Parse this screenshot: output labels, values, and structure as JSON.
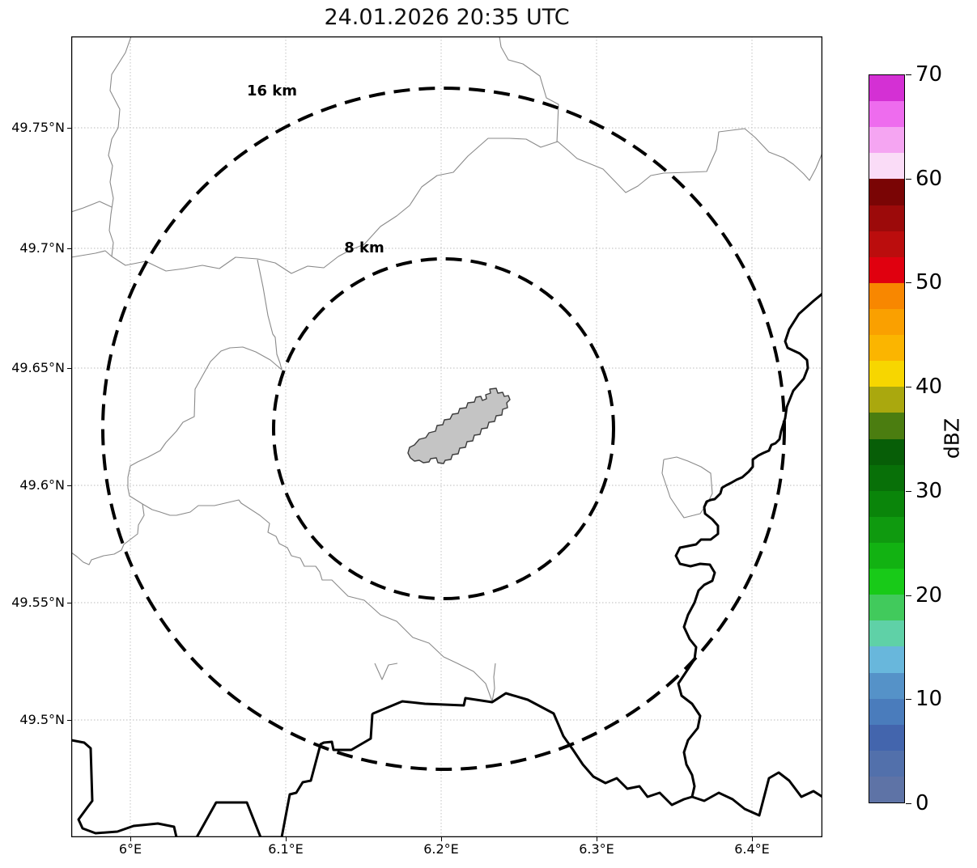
{
  "title": "24.01.2026 20:35 UTC",
  "map": {
    "x_tick_labels": [
      "6°E",
      "6.1°E",
      "6.2°E",
      "6.3°E",
      "6.4°E"
    ],
    "y_tick_labels": [
      "49.75°N",
      "49.7°N",
      "49.65°N",
      "49.6°N",
      "49.55°N",
      "49.5°N"
    ],
    "range_ring_outer_label": "16 km",
    "range_ring_inner_label": "8 km",
    "range_ring_radii_km": [
      16,
      8
    ],
    "feature_colors": {
      "country_border": "#000000",
      "region_boundary": "#8a8a8a",
      "airport_fill": "#c4c4c4",
      "airport_outline": "#3c3c3c",
      "grid": "#bbbbbb"
    }
  },
  "colorbar": {
    "label": "dBZ",
    "tick_labels": [
      "0",
      "10",
      "20",
      "30",
      "40",
      "50",
      "60",
      "70"
    ],
    "min": 0,
    "max": 70,
    "segment_step_dbz": 2.5,
    "segment_colors_bottom_to_top": [
      "#5e73a6",
      "#5270ab",
      "#4365ad",
      "#4a7cbc",
      "#5592c8",
      "#68b7dc",
      "#5fd1a7",
      "#41ca5c",
      "#18ca18",
      "#12b212",
      "#0f9a0f",
      "#0a850a",
      "#087008",
      "#075e07",
      "#4b7d10",
      "#aaa80e",
      "#f7d600",
      "#fbb500",
      "#faa000",
      "#f88700",
      "#e0000f",
      "#bb0d0d",
      "#9c0a0a",
      "#7a0505",
      "#fadcf7",
      "#f5a5f2",
      "#ee6cee",
      "#d430d4"
    ]
  }
}
